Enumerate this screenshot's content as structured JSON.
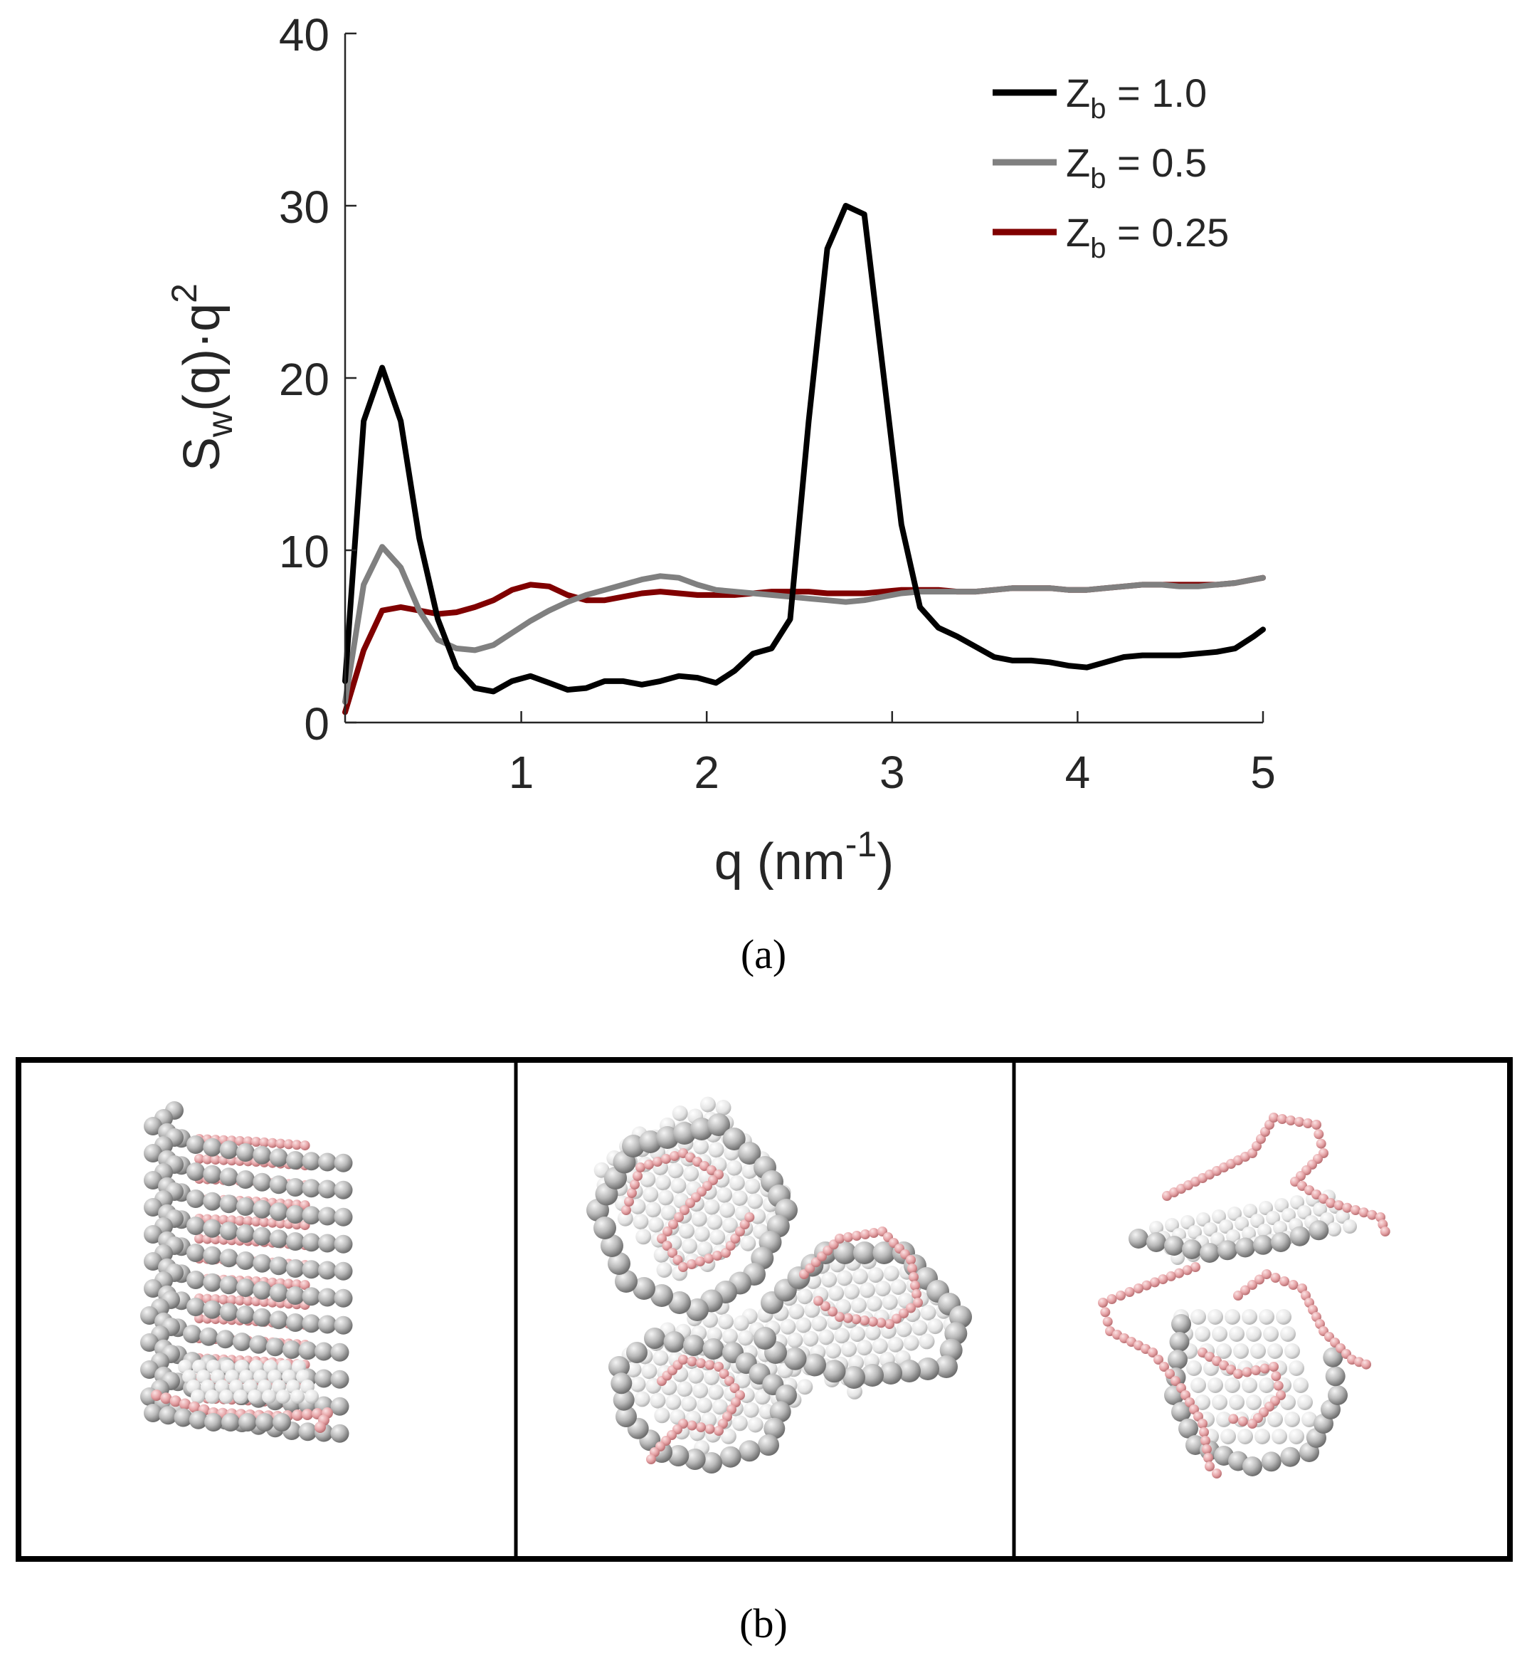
{
  "chart_data": {
    "type": "line",
    "title": "",
    "xlabel": "q (nm",
    "xlabel_sup": "-1",
    "xlabel_end": ")",
    "ylabel": {
      "base": "S",
      "sub": "w",
      "mid": "(q)·q",
      "sup": "2"
    },
    "xlim": [
      0.05,
      5
    ],
    "ylim": [
      0,
      40
    ],
    "xticks": [
      1,
      2,
      3,
      4,
      5
    ],
    "yticks": [
      0,
      10,
      20,
      30,
      40
    ],
    "xtick_labels": [
      "1",
      "2",
      "3",
      "4",
      "5"
    ],
    "ytick_labels": [
      "0",
      "10",
      "20",
      "30",
      "40"
    ],
    "grid": false,
    "legend_position": "top-right",
    "series": [
      {
        "name": "Z",
        "name_sub": "b",
        "name_rest": " = 1.0",
        "color": "#000000",
        "x": [
          0.05,
          0.15,
          0.25,
          0.35,
          0.45,
          0.55,
          0.65,
          0.75,
          0.85,
          0.95,
          1.05,
          1.15,
          1.25,
          1.35,
          1.45,
          1.55,
          1.65,
          1.75,
          1.85,
          1.95,
          2.05,
          2.15,
          2.25,
          2.35,
          2.45,
          2.55,
          2.65,
          2.75,
          2.85,
          2.95,
          3.05,
          3.15,
          3.25,
          3.35,
          3.45,
          3.55,
          3.65,
          3.75,
          3.85,
          3.95,
          4.05,
          4.15,
          4.25,
          4.35,
          4.45,
          4.55,
          4.65,
          4.75,
          4.85,
          4.95,
          5.0
        ],
        "y": [
          2.4,
          17.5,
          20.6,
          17.5,
          10.7,
          6.0,
          3.2,
          2.0,
          1.8,
          2.4,
          2.7,
          2.3,
          1.9,
          2.0,
          2.4,
          2.4,
          2.2,
          2.4,
          2.7,
          2.6,
          2.3,
          3.0,
          4.0,
          4.3,
          6.0,
          17.5,
          27.5,
          30.0,
          29.5,
          20.5,
          11.5,
          6.7,
          5.5,
          5.0,
          4.4,
          3.8,
          3.6,
          3.6,
          3.5,
          3.3,
          3.2,
          3.5,
          3.8,
          3.9,
          3.9,
          3.9,
          4.0,
          4.1,
          4.3,
          5.0,
          5.4
        ]
      },
      {
        "name": "Z",
        "name_sub": "b",
        "name_rest": " = 0.5",
        "color": "#808080",
        "x": [
          0.05,
          0.15,
          0.25,
          0.35,
          0.45,
          0.55,
          0.65,
          0.75,
          0.85,
          0.95,
          1.05,
          1.15,
          1.25,
          1.35,
          1.45,
          1.55,
          1.65,
          1.75,
          1.85,
          1.95,
          2.05,
          2.15,
          2.25,
          2.35,
          2.45,
          2.55,
          2.65,
          2.75,
          2.85,
          2.95,
          3.05,
          3.15,
          3.25,
          3.35,
          3.45,
          3.55,
          3.65,
          3.75,
          3.85,
          3.95,
          4.05,
          4.15,
          4.25,
          4.35,
          4.45,
          4.55,
          4.65,
          4.75,
          4.85,
          4.95,
          5.0
        ],
        "y": [
          1.2,
          8.0,
          10.2,
          9.0,
          6.5,
          4.8,
          4.3,
          4.2,
          4.5,
          5.2,
          5.9,
          6.5,
          7.0,
          7.4,
          7.7,
          8.0,
          8.3,
          8.5,
          8.4,
          8.0,
          7.7,
          7.6,
          7.5,
          7.4,
          7.3,
          7.2,
          7.1,
          7.0,
          7.1,
          7.3,
          7.5,
          7.6,
          7.6,
          7.6,
          7.6,
          7.7,
          7.8,
          7.8,
          7.8,
          7.7,
          7.7,
          7.8,
          7.9,
          8.0,
          8.0,
          7.9,
          7.9,
          8.0,
          8.1,
          8.3,
          8.4
        ]
      },
      {
        "name": "Z",
        "name_sub": "b",
        "name_rest": " = 0.25",
        "color": "#800000",
        "x": [
          0.05,
          0.15,
          0.25,
          0.35,
          0.45,
          0.55,
          0.65,
          0.75,
          0.85,
          0.95,
          1.05,
          1.15,
          1.25,
          1.35,
          1.45,
          1.55,
          1.65,
          1.75,
          1.85,
          1.95,
          2.05,
          2.15,
          2.25,
          2.35,
          2.45,
          2.55,
          2.65,
          2.75,
          2.85,
          2.95,
          3.05,
          3.15,
          3.25,
          3.35,
          3.45,
          3.55,
          3.65,
          3.75,
          3.85,
          3.95,
          4.05,
          4.15,
          4.25,
          4.35,
          4.45,
          4.55,
          4.65,
          4.75,
          4.85,
          4.95,
          5.0
        ],
        "y": [
          0.6,
          4.2,
          6.5,
          6.7,
          6.5,
          6.3,
          6.4,
          6.7,
          7.1,
          7.7,
          8.0,
          7.9,
          7.4,
          7.1,
          7.1,
          7.3,
          7.5,
          7.6,
          7.5,
          7.4,
          7.4,
          7.4,
          7.5,
          7.6,
          7.6,
          7.6,
          7.5,
          7.5,
          7.5,
          7.6,
          7.7,
          7.7,
          7.7,
          7.6,
          7.6,
          7.7,
          7.8,
          7.8,
          7.8,
          7.7,
          7.7,
          7.8,
          7.9,
          8.0,
          8.0,
          8.0,
          8.0,
          8.0,
          8.1,
          8.3,
          8.4
        ]
      }
    ]
  },
  "captions": {
    "a": "(a)",
    "b": "(b)"
  },
  "panel_b": {
    "colors": {
      "bead_gray": "#a8a8a8",
      "bead_pink": "#e8a7a9",
      "frame": "#000000"
    }
  }
}
